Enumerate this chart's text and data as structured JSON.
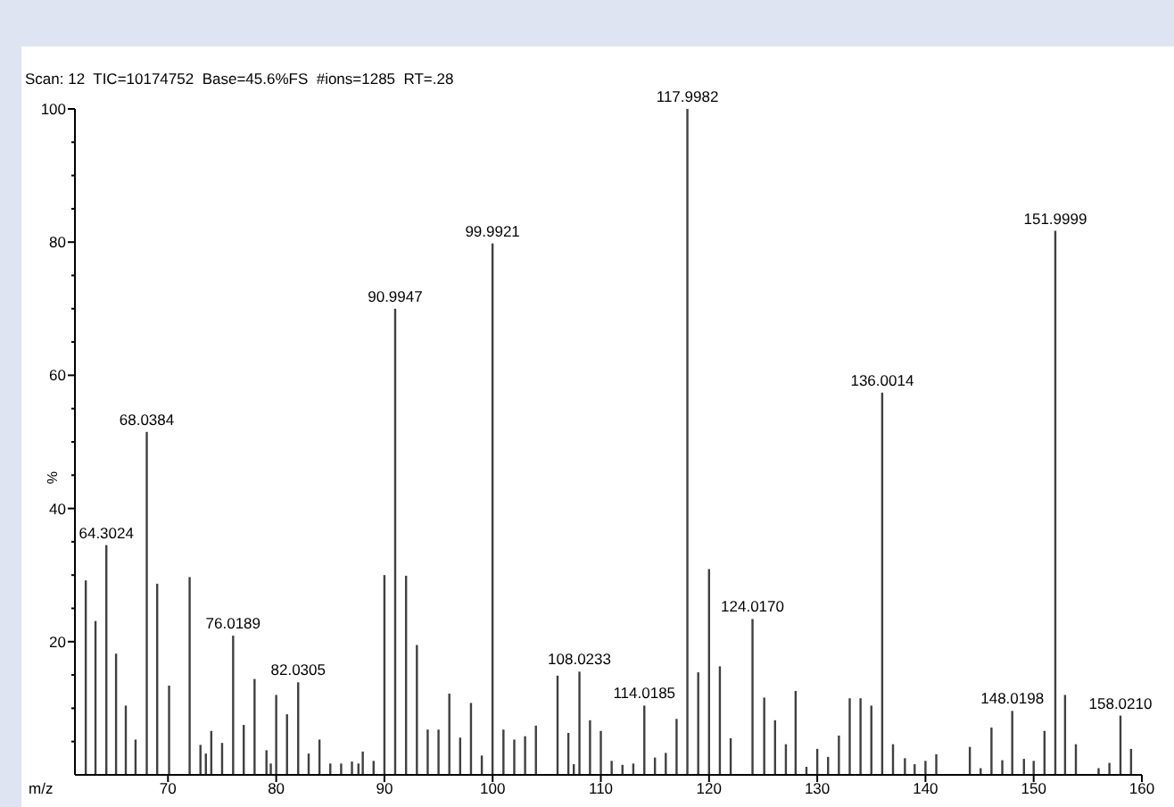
{
  "chart_data": {
    "type": "bar",
    "title": "Scan: 12  TIC=10174752  Base=45.6%FS  #ions=1285  RT=.28",
    "xlabel": "m/z",
    "ylabel": "%",
    "x": [
      62.4,
      63.3,
      64.3024,
      65.2,
      66.1,
      67.0,
      68.0384,
      69.0,
      70.1,
      72.0,
      73.0,
      73.5,
      74.0,
      75.0,
      76.0189,
      77.0,
      78.0,
      79.1,
      79.5,
      80.0,
      81.0,
      82.0305,
      83.0,
      84.0,
      85.0,
      86.0,
      87.0,
      87.6,
      88.0,
      89.0,
      90.0,
      90.9947,
      92.0,
      93.0,
      94.0,
      95.0,
      96.0,
      97.0,
      98.0,
      99.0,
      99.9921,
      101.0,
      102.0,
      103.0,
      104.0,
      106.0,
      107.0,
      107.5,
      108.0233,
      109.0,
      110.0,
      111.0,
      112.0,
      113.0,
      114.0185,
      115.0,
      116.0,
      117.0,
      117.9982,
      119.0,
      120.0,
      121.0,
      122.0,
      124.017,
      125.1,
      126.1,
      127.1,
      128.0,
      129.0,
      130.0,
      131.0,
      132.0,
      133.0,
      134.0,
      135.0,
      136.0014,
      137.0,
      138.1,
      139.0,
      140.0,
      141.0,
      144.1,
      145.1,
      146.1,
      147.1,
      148.0198,
      149.1,
      150.0,
      151.0,
      151.9999,
      152.9,
      153.9,
      156.0,
      157.0,
      158.021,
      159.0
    ],
    "values": [
      29.2,
      23.1,
      34.5,
      18.2,
      10.4,
      5.3,
      51.5,
      28.7,
      13.4,
      29.7,
      4.5,
      3.2,
      6.6,
      4.8,
      20.9,
      7.5,
      14.4,
      3.7,
      1.7,
      12.0,
      9.1,
      13.9,
      3.2,
      5.3,
      1.7,
      1.7,
      2.0,
      1.7,
      3.5,
      2.1,
      30.0,
      70.0,
      29.9,
      19.5,
      6.8,
      6.8,
      12.2,
      5.6,
      10.8,
      2.9,
      79.8,
      6.8,
      5.3,
      5.8,
      7.4,
      14.9,
      6.3,
      1.6,
      15.5,
      8.2,
      6.6,
      2.1,
      1.5,
      1.7,
      10.4,
      2.6,
      3.3,
      8.4,
      100,
      15.4,
      30.9,
      16.3,
      5.5,
      23.4,
      11.6,
      8.2,
      4.6,
      12.6,
      1.2,
      3.9,
      2.7,
      5.9,
      11.5,
      11.5,
      10.4,
      57.4,
      4.6,
      2.5,
      1.6,
      2.1,
      3.1,
      4.2,
      1.0,
      7.1,
      2.2,
      9.6,
      2.4,
      2.1,
      6.6,
      81.7,
      12.0,
      4.6,
      1.0,
      1.8,
      8.9,
      3.9
    ],
    "color": "#404040",
    "annotations": [
      {
        "text": "64.3024",
        "x": 64.3024,
        "y": 34.5
      },
      {
        "text": "68.0384",
        "x": 68.0384,
        "y": 51.5
      },
      {
        "text": "76.0189",
        "x": 76.0189,
        "y": 20.9
      },
      {
        "text": "82.0305",
        "x": 82.0305,
        "y": 13.9
      },
      {
        "text": "90.9947",
        "x": 90.9947,
        "y": 70.0
      },
      {
        "text": "99.9921",
        "x": 99.9921,
        "y": 79.8
      },
      {
        "text": "108.0233",
        "x": 108.0233,
        "y": 15.5
      },
      {
        "text": "114.0185",
        "x": 114.0185,
        "y": 10.4
      },
      {
        "text": "117.9982",
        "x": 117.9982,
        "y": 100
      },
      {
        "text": "124.0170",
        "x": 124.017,
        "y": 23.4
      },
      {
        "text": "136.0014",
        "x": 136.0014,
        "y": 57.4
      },
      {
        "text": "148.0198",
        "x": 148.0198,
        "y": 9.6
      },
      {
        "text": "151.9999",
        "x": 151.9999,
        "y": 81.7
      },
      {
        "text": "158.0210",
        "x": 158.021,
        "y": 8.9
      }
    ],
    "xlim": [
      61.4,
      160
    ],
    "xticks": [
      70,
      80,
      90,
      100,
      110,
      120,
      130,
      140,
      150,
      160
    ],
    "ylim": [
      0,
      100
    ],
    "yticks": [
      {
        "value": 5,
        "label": null
      },
      {
        "value": 10,
        "label": null
      },
      {
        "value": 15,
        "label": null
      },
      20,
      {
        "value": 25,
        "label": null
      },
      {
        "value": 30,
        "label": null
      },
      {
        "value": 35,
        "label": null
      },
      40,
      {
        "value": 45,
        "label": null
      },
      {
        "value": 50,
        "label": null
      },
      {
        "value": 55,
        "label": null
      },
      60,
      {
        "value": 65,
        "label": null
      },
      {
        "value": 70,
        "label": null
      },
      {
        "value": 75,
        "label": null
      },
      80,
      {
        "value": 85,
        "label": null
      },
      {
        "value": 90,
        "label": null
      },
      {
        "value": 95,
        "label": null
      },
      100
    ],
    "grid": false
  }
}
